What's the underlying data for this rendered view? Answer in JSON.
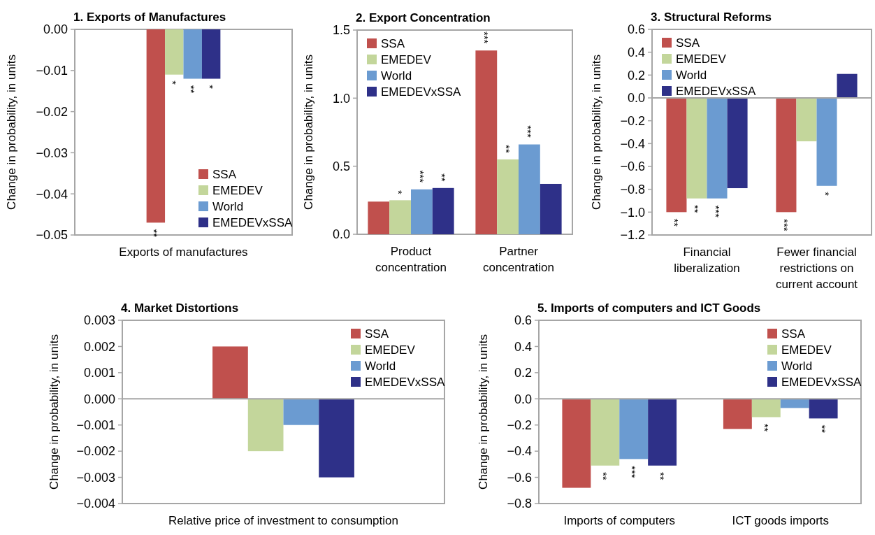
{
  "chart_data": [
    {
      "type": "bar",
      "title": "1. Exports of Manufactures",
      "ylabel": "Change in probability, in units",
      "categories": [
        "Exports of manufactures"
      ],
      "series": [
        {
          "name": "SSA",
          "color": "#c0504d",
          "values": [
            -0.047
          ]
        },
        {
          "name": "EMEDEV",
          "color": "#c3d69b",
          "values": [
            -0.011
          ]
        },
        {
          "name": "World",
          "color": "#6b9bd1",
          "values": [
            -0.012
          ]
        },
        {
          "name": "EMEDEVxSSA",
          "color": "#2e3088",
          "values": [
            -0.012
          ]
        }
      ],
      "ylim": [
        -0.05,
        0
      ],
      "yticks": [
        {
          "value": 0,
          "label": "0.00"
        },
        {
          "value": -0.01,
          "label": "−0.01"
        },
        {
          "value": -0.02,
          "label": "−0.02"
        },
        {
          "value": -0.03,
          "label": "−0.03"
        },
        {
          "value": -0.04,
          "label": "−0.04"
        },
        {
          "value": -0.05,
          "label": "−0.05"
        }
      ],
      "legend": "bottom right",
      "annotations": [
        "**",
        "*",
        "**",
        "*"
      ]
    },
    {
      "type": "bar",
      "title": "2. Export Concentration",
      "ylabel": "Change in probability, in units",
      "categories": [
        "Product concentration",
        "Partner concentration"
      ],
      "series": [
        {
          "name": "SSA",
          "color": "#c0504d",
          "values": [
            0.24,
            1.35
          ]
        },
        {
          "name": "EMEDEV",
          "color": "#c3d69b",
          "values": [
            0.25,
            0.55
          ]
        },
        {
          "name": "World",
          "color": "#6b9bd1",
          "values": [
            0.33,
            0.66
          ]
        },
        {
          "name": "EMEDEVxSSA",
          "color": "#2e3088",
          "values": [
            0.34,
            0.37
          ]
        }
      ],
      "ylim": [
        0,
        1.5
      ],
      "yticks": [
        {
          "value": 0,
          "label": "0.0"
        },
        {
          "value": 0.5,
          "label": "0.5"
        },
        {
          "value": 1,
          "label": "1.0"
        },
        {
          "value": 1.5,
          "label": "1.5"
        }
      ],
      "legend": "top left",
      "annotations": [
        "*",
        "***",
        "**",
        "***",
        "**",
        "***"
      ]
    },
    {
      "type": "bar",
      "title": "3. Structural Reforms",
      "ylabel": "Change in probability, in units",
      "categories": [
        "Financial liberalization",
        "Fewer financial restrictions on current account"
      ],
      "series": [
        {
          "name": "SSA",
          "color": "#c0504d",
          "values": [
            -1.0,
            -1.0
          ]
        },
        {
          "name": "EMEDEV",
          "color": "#c3d69b",
          "values": [
            -0.88,
            -0.38
          ]
        },
        {
          "name": "World",
          "color": "#6b9bd1",
          "values": [
            -0.88,
            -0.77
          ]
        },
        {
          "name": "EMEDEVxSSA",
          "color": "#2e3088",
          "values": [
            -0.79,
            0.21
          ]
        }
      ],
      "ylim": [
        -1.2,
        0.6
      ],
      "yticks": [
        {
          "value": 0.6,
          "label": "0.6"
        },
        {
          "value": 0.4,
          "label": "0.4"
        },
        {
          "value": 0.2,
          "label": "0.2"
        },
        {
          "value": 0,
          "label": "0.0"
        },
        {
          "value": -0.2,
          "label": "−0.2"
        },
        {
          "value": -0.4,
          "label": "−0.4"
        },
        {
          "value": -0.6,
          "label": "−0.6"
        },
        {
          "value": -0.8,
          "label": "−0.8"
        },
        {
          "value": -1,
          "label": "−1.0"
        },
        {
          "value": -1.2,
          "label": "−1.2"
        }
      ],
      "legend": "top left",
      "annotations": [
        "**",
        "**",
        "***",
        "***",
        "*"
      ]
    },
    {
      "type": "bar",
      "title": "4. Market Distortions",
      "ylabel": "Change in probability, in units",
      "categories": [
        "Relative price of investment to consumption"
      ],
      "series": [
        {
          "name": "SSA",
          "color": "#c0504d",
          "values": [
            0.002
          ]
        },
        {
          "name": "EMEDEV",
          "color": "#c3d69b",
          "values": [
            -0.002
          ]
        },
        {
          "name": "World",
          "color": "#6b9bd1",
          "values": [
            -0.001
          ]
        },
        {
          "name": "EMEDEVxSSA",
          "color": "#2e3088",
          "values": [
            -0.003
          ]
        }
      ],
      "ylim": [
        -0.004,
        0.003
      ],
      "yticks": [
        {
          "value": 0.003,
          "label": "0.003"
        },
        {
          "value": 0.002,
          "label": "0.002"
        },
        {
          "value": 0.001,
          "label": "0.001"
        },
        {
          "value": 0,
          "label": "0.000"
        },
        {
          "value": -0.001,
          "label": "−0.001"
        },
        {
          "value": -0.002,
          "label": "−0.002"
        },
        {
          "value": -0.003,
          "label": "−0.003"
        },
        {
          "value": -0.004,
          "label": "−0.004"
        }
      ],
      "legend": "top right"
    },
    {
      "type": "bar",
      "title": "5. Imports of computers and ICT Goods",
      "ylabel": "Change in probability, in units",
      "categories": [
        "Imports of computers",
        "ICT goods imports"
      ],
      "series": [
        {
          "name": "SSA",
          "color": "#c0504d",
          "values": [
            -0.68,
            -0.23
          ]
        },
        {
          "name": "EMEDEV",
          "color": "#c3d69b",
          "values": [
            -0.51,
            -0.14
          ]
        },
        {
          "name": "World",
          "color": "#6b9bd1",
          "values": [
            -0.46,
            -0.07
          ]
        },
        {
          "name": "EMEDEVxSSA",
          "color": "#2e3088",
          "values": [
            -0.51,
            -0.15
          ]
        }
      ],
      "ylim": [
        -0.8,
        0.6
      ],
      "yticks": [
        {
          "value": 0.6,
          "label": "0.6"
        },
        {
          "value": 0.4,
          "label": "0.4"
        },
        {
          "value": 0.2,
          "label": "0.2"
        },
        {
          "value": 0,
          "label": "0.0"
        },
        {
          "value": -0.2,
          "label": "−0.2"
        },
        {
          "value": -0.4,
          "label": "−0.4"
        },
        {
          "value": -0.6,
          "label": "−0.6"
        },
        {
          "value": -0.8,
          "label": "−0.8"
        }
      ],
      "legend": "top right",
      "annotations": [
        "**",
        "***",
        "**",
        "**",
        "**"
      ]
    }
  ]
}
